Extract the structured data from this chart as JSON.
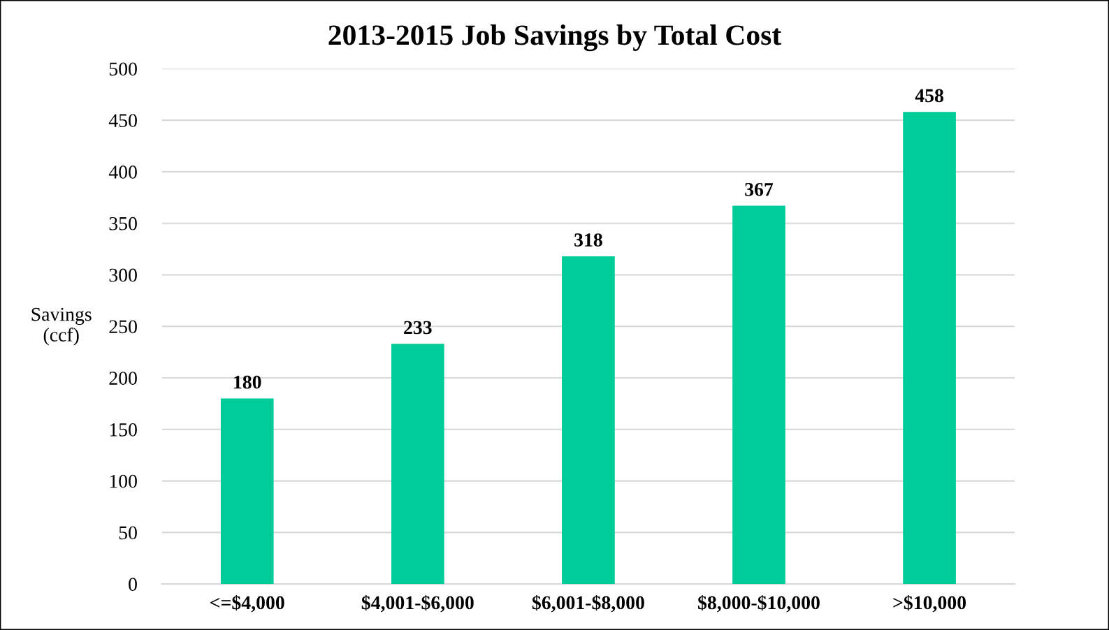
{
  "chart_data": {
    "type": "bar",
    "title": "2013-2015 Job Savings by Total Cost",
    "ylabel": "Savings\n(ccf)",
    "categories": [
      "<=$4,000",
      "$4,001-$6,000",
      "$6,001-$8,000",
      "$8,000-$10,000",
      ">$10,000"
    ],
    "values": [
      180,
      233,
      318,
      367,
      458
    ],
    "color": "#00cc99",
    "ylim": [
      0,
      500
    ],
    "yticks": [
      0,
      50,
      100,
      150,
      200,
      250,
      300,
      350,
      400,
      450,
      500
    ],
    "grid": "y",
    "data_labels": true,
    "legend": false
  }
}
